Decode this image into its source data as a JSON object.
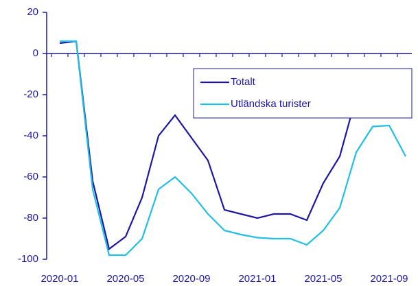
{
  "chart_data": {
    "type": "line",
    "categories": [
      "2020-01",
      null,
      null,
      null,
      "2020-05",
      null,
      null,
      null,
      "2020-09",
      null,
      null,
      null,
      "2021-01",
      null,
      null,
      null,
      "2021-05",
      null,
      null,
      null,
      "2021-09",
      null
    ],
    "series": [
      {
        "name": "Totalt",
        "color": "#1c17a3",
        "values": [
          5,
          6,
          -62,
          -95,
          -89,
          -70,
          -40,
          -30,
          -41,
          -52,
          -76,
          -78,
          -80,
          -78,
          -78,
          -81,
          -63,
          -50,
          -21,
          -11,
          -13,
          -23
        ]
      },
      {
        "name": "Utländska turister",
        "color": "#1fbfe6",
        "values": [
          6,
          6,
          -66,
          -98,
          -98,
          -90,
          -66,
          -60,
          -68,
          -78,
          -86,
          -88,
          -89.5,
          -90,
          -90,
          -93,
          -86,
          -75,
          -48,
          -35.5,
          -35,
          -50
        ]
      }
    ],
    "ylim": [
      -100,
      20
    ],
    "yticks": [
      -100,
      -80,
      -60,
      -40,
      -20,
      0,
      20
    ],
    "legend": "upper right"
  }
}
